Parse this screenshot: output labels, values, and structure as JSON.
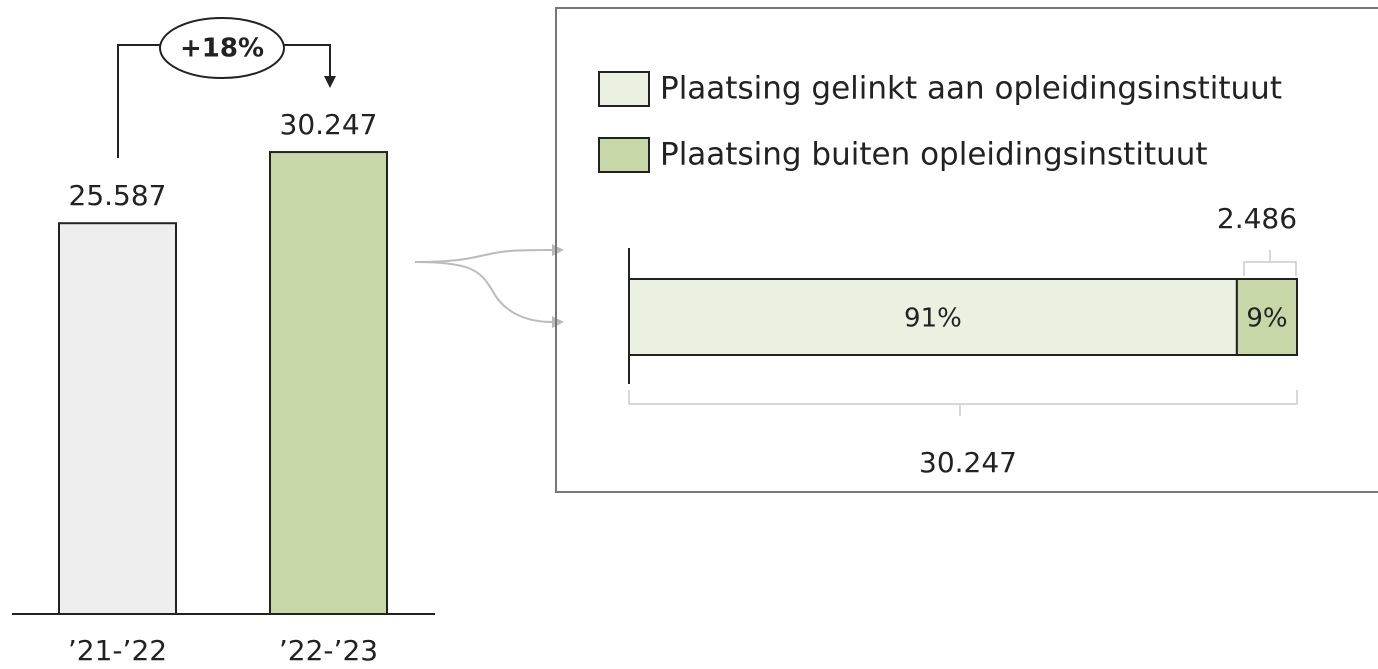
{
  "chart_data": [
    {
      "type": "bar",
      "categories": [
        "’21-’22",
        "’22-’23"
      ],
      "values": [
        25587,
        30247
      ],
      "value_labels": [
        "25.587",
        "30.247"
      ],
      "colors": [
        "#eeeeee",
        "#c8d7a8"
      ],
      "ylim": [
        0,
        33000
      ],
      "annotation": "+18%"
    },
    {
      "type": "stacked_hbar",
      "series": [
        {
          "name": "Plaatsing gelinkt aan opleidingsinstituut",
          "color": "#eaf1e0",
          "values": [
            91
          ],
          "value_labels": [
            "91%"
          ]
        },
        {
          "name": "Plaatsing buiten opleidingsinstituut",
          "color": "#c8d7a8",
          "values": [
            9
          ],
          "value_labels": [
            "9%"
          ]
        }
      ],
      "xlim": [
        0,
        100
      ],
      "annotations": [
        "2.486",
        "30.247"
      ]
    }
  ]
}
